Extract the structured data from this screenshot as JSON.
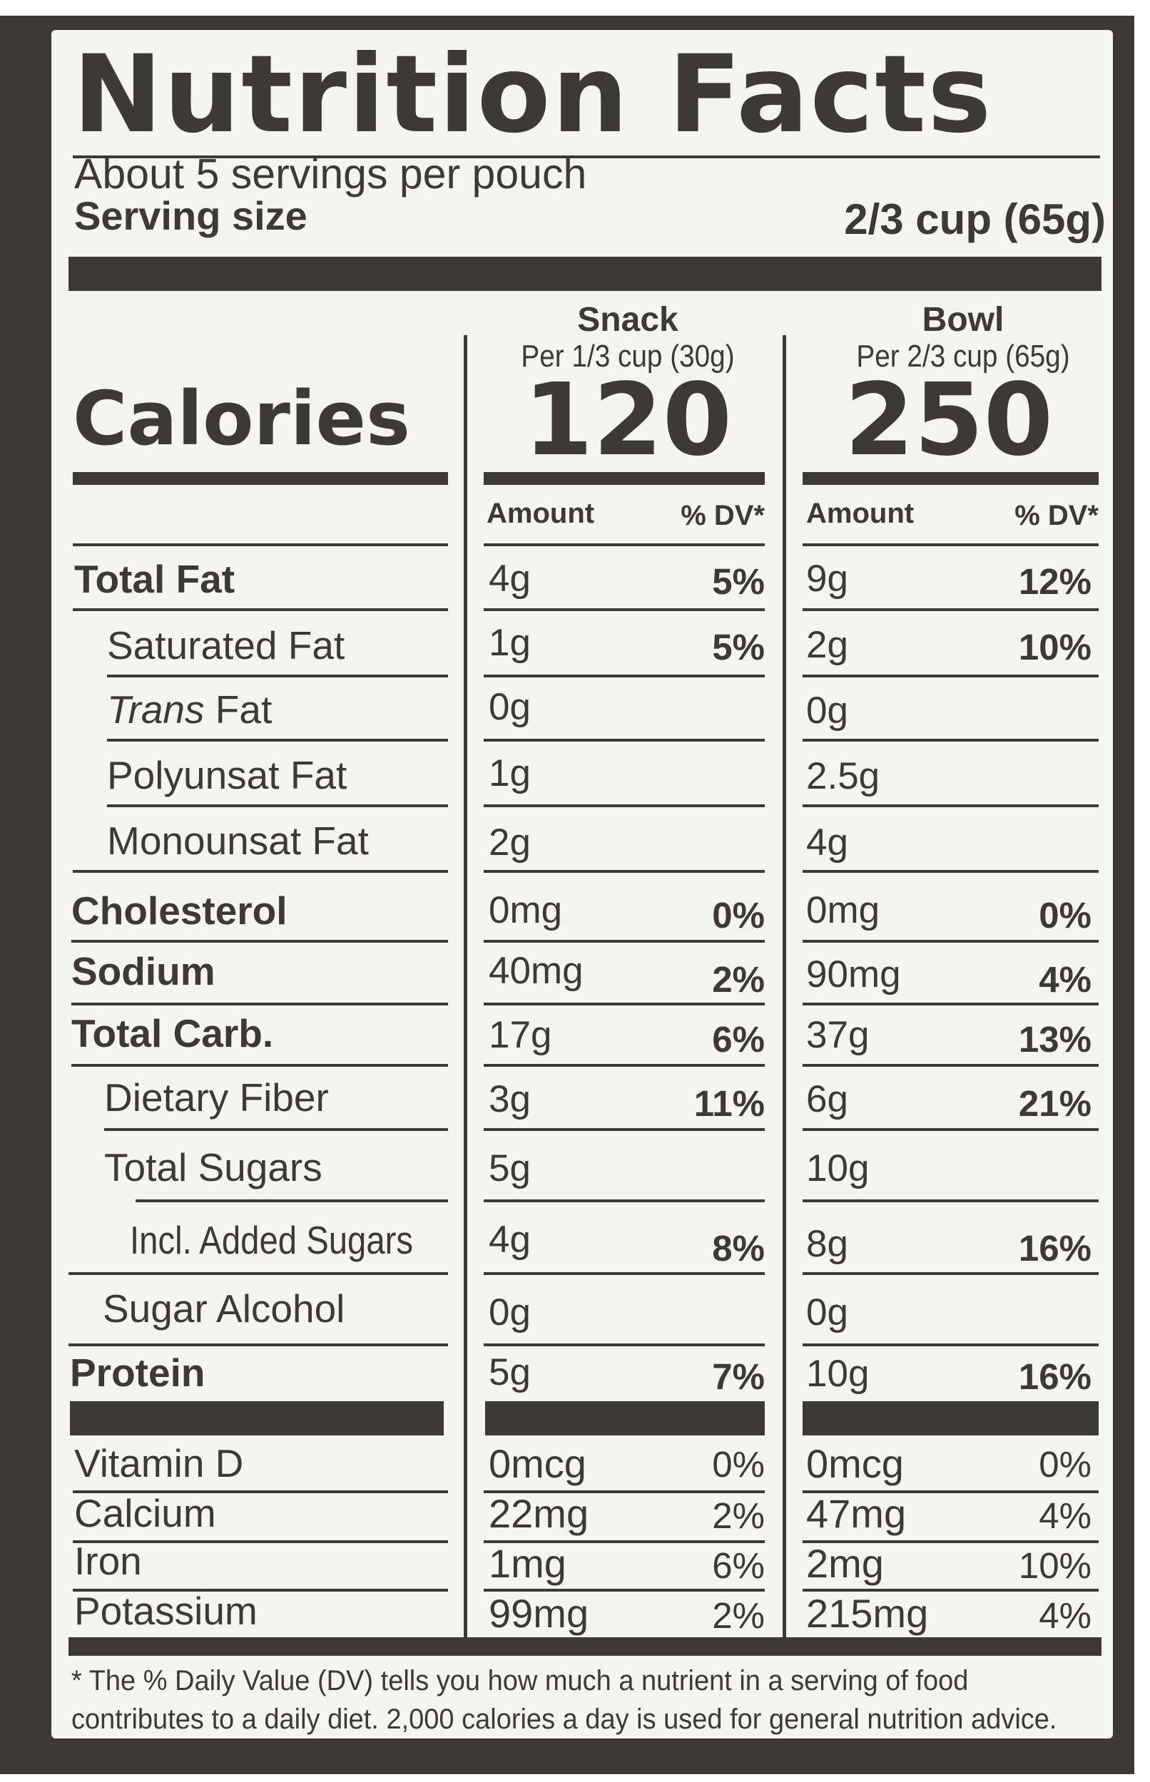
{
  "title": "Nutrition Facts",
  "servings_per_container": "About 5 servings per pouch",
  "serving_size_label": "Serving size",
  "serving_size_value": "2/3 cup (65g)",
  "columns": [
    {
      "title": "Snack",
      "serving": "Per 1/3 cup (30g)",
      "calories": "120"
    },
    {
      "title": "Bowl",
      "serving": "Per 2/3 cup (65g)",
      "calories": "250"
    }
  ],
  "calories_label": "Calories",
  "amount_header": "Amount",
  "dv_header": "% DV*",
  "nutrients": [
    {
      "name": "Total Fat",
      "snack_amount": "4g",
      "snack_dv": "5%",
      "bowl_amount": "9g",
      "bowl_dv": "12%"
    },
    {
      "name": "Saturated Fat",
      "snack_amount": "1g",
      "snack_dv": "5%",
      "bowl_amount": "2g",
      "bowl_dv": "10%"
    },
    {
      "name_italic": "Trans",
      "name": "Fat",
      "snack_amount": "0g",
      "snack_dv": "",
      "bowl_amount": "0g",
      "bowl_dv": ""
    },
    {
      "name": "Polyunsat Fat",
      "snack_amount": "1g",
      "snack_dv": "",
      "bowl_amount": "2.5g",
      "bowl_dv": ""
    },
    {
      "name": "Monounsat Fat",
      "snack_amount": "2g",
      "snack_dv": "",
      "bowl_amount": "4g",
      "bowl_dv": ""
    },
    {
      "name": "Cholesterol",
      "snack_amount": "0mg",
      "snack_dv": "0%",
      "bowl_amount": "0mg",
      "bowl_dv": "0%"
    },
    {
      "name": "Sodium",
      "snack_amount": "40mg",
      "snack_dv": "2%",
      "bowl_amount": "90mg",
      "bowl_dv": "4%"
    },
    {
      "name": "Total Carb.",
      "snack_amount": "17g",
      "snack_dv": "6%",
      "bowl_amount": "37g",
      "bowl_dv": "13%"
    },
    {
      "name": "Dietary Fiber",
      "snack_amount": "3g",
      "snack_dv": "11%",
      "bowl_amount": "6g",
      "bowl_dv": "21%"
    },
    {
      "name": "Total Sugars",
      "snack_amount": "5g",
      "snack_dv": "",
      "bowl_amount": "10g",
      "bowl_dv": ""
    },
    {
      "name": "Incl. Added Sugars",
      "snack_amount": "4g",
      "snack_dv": "8%",
      "bowl_amount": "8g",
      "bowl_dv": "16%"
    },
    {
      "name": "Sugar Alcohol",
      "snack_amount": "0g",
      "snack_dv": "",
      "bowl_amount": "0g",
      "bowl_dv": ""
    },
    {
      "name": "Protein",
      "snack_amount": "5g",
      "snack_dv": "7%",
      "bowl_amount": "10g",
      "bowl_dv": "16%"
    }
  ],
  "micronutrients": [
    {
      "name": "Vitamin D",
      "snack_amount": "0mcg",
      "snack_dv": "0%",
      "bowl_amount": "0mcg",
      "bowl_dv": "0%"
    },
    {
      "name": "Calcium",
      "snack_amount": "22mg",
      "snack_dv": "2%",
      "bowl_amount": "47mg",
      "bowl_dv": "4%"
    },
    {
      "name": "Iron",
      "snack_amount": "1mg",
      "snack_dv": "6%",
      "bowl_amount": "2mg",
      "bowl_dv": "10%"
    },
    {
      "name": "Potassium",
      "snack_amount": "99mg",
      "snack_dv": "2%",
      "bowl_amount": "215mg",
      "bowl_dv": "4%"
    }
  ],
  "footnote_line1": "* The % Daily Value (DV) tells you how much a nutrient in a serving of food",
  "footnote_line2": "contributes to a daily diet. 2,000 calories a day is used for general nutrition advice."
}
